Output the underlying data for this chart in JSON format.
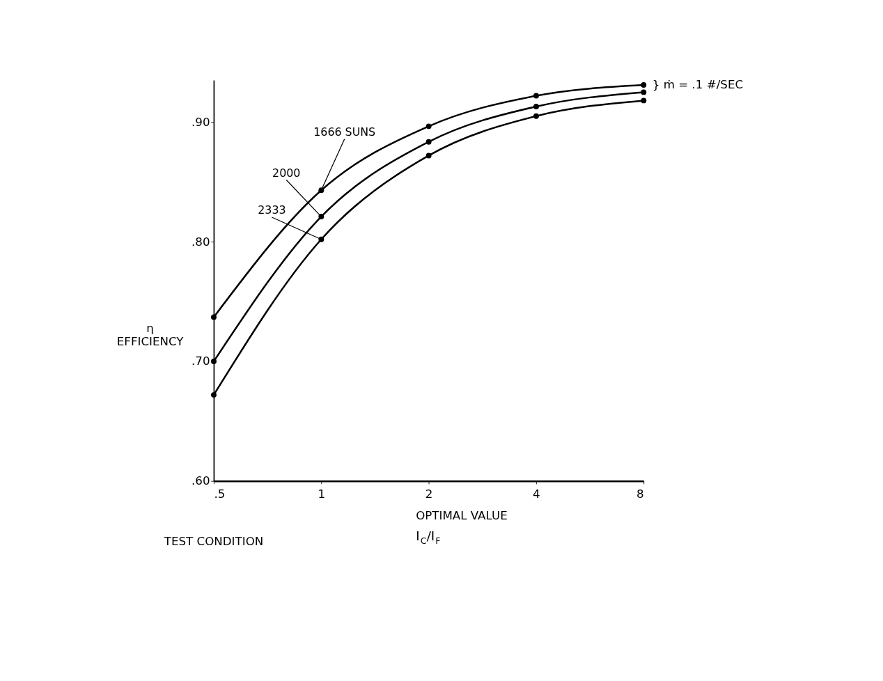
{
  "chart_data": {
    "type": "line",
    "x": [
      0.5,
      1,
      2,
      4,
      8
    ],
    "series": [
      {
        "name": "1666 SUNS",
        "color": "#000000",
        "values": [
          0.737,
          0.843,
          0.8965,
          0.922,
          0.931
        ]
      },
      {
        "name": "2000",
        "color": "#000000",
        "values": [
          0.7,
          0.821,
          0.8835,
          0.913,
          0.925
        ]
      },
      {
        "name": "2333",
        "color": "#000000",
        "values": [
          0.672,
          0.802,
          0.872,
          0.905,
          0.918
        ]
      }
    ],
    "xlabel": "I$_{C}$/I$_{F}$",
    "ylabel": "η EFFICIENCY",
    "xlim": [
      0.5,
      8
    ],
    "xticks": [
      {
        "value": 0.5,
        "label": ".5"
      },
      1,
      2,
      4,
      8
    ],
    "log": "x",
    "ylim": [
      0.6,
      0.935
    ],
    "yticks": [
      {
        "value": 0.6,
        "label": ".60"
      },
      {
        "value": 0.7,
        "label": ".70"
      },
      {
        "value": 0.8,
        "label": ".80"
      },
      {
        "value": 0.9,
        "label": ".90"
      }
    ],
    "grid": false,
    "marker": "circle",
    "line_style": "solid",
    "legend": false,
    "annotations": [
      "} ṁ = .1 #/SEC",
      "TEST CONDITION",
      "OPTIMAL VALUE"
    ]
  }
}
